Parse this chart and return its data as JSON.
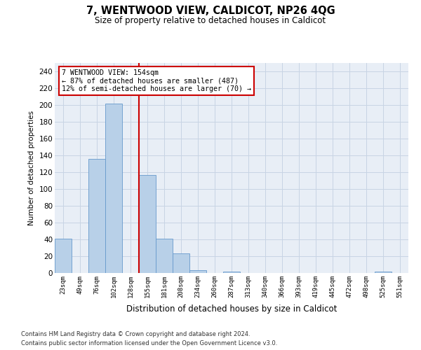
{
  "title": "7, WENTWOOD VIEW, CALDICOT, NP26 4QG",
  "subtitle": "Size of property relative to detached houses in Caldicot",
  "xlabel": "Distribution of detached houses by size in Caldicot",
  "ylabel": "Number of detached properties",
  "bin_labels": [
    "23sqm",
    "49sqm",
    "76sqm",
    "102sqm",
    "128sqm",
    "155sqm",
    "181sqm",
    "208sqm",
    "234sqm",
    "260sqm",
    "287sqm",
    "313sqm",
    "340sqm",
    "366sqm",
    "393sqm",
    "419sqm",
    "445sqm",
    "472sqm",
    "498sqm",
    "525sqm",
    "551sqm"
  ],
  "bar_heights": [
    41,
    0,
    136,
    202,
    0,
    117,
    41,
    23,
    3,
    0,
    2,
    0,
    0,
    0,
    0,
    0,
    0,
    0,
    0,
    2,
    0
  ],
  "bar_color": "#b8d0e8",
  "bar_edgecolor": "#6699cc",
  "highlight_color": "#cc0000",
  "annotation_line1": "7 WENTWOOD VIEW: 154sqm",
  "annotation_line2": "← 87% of detached houses are smaller (487)",
  "annotation_line3": "12% of semi-detached houses are larger (70) →",
  "vline_bin": 4.5,
  "ylim": [
    0,
    250
  ],
  "yticks": [
    0,
    20,
    40,
    60,
    80,
    100,
    120,
    140,
    160,
    180,
    200,
    220,
    240
  ],
  "grid_color": "#c8d4e4",
  "background_color": "#e8eef6",
  "footnote1": "Contains HM Land Registry data © Crown copyright and database right 2024.",
  "footnote2": "Contains public sector information licensed under the Open Government Licence v3.0."
}
